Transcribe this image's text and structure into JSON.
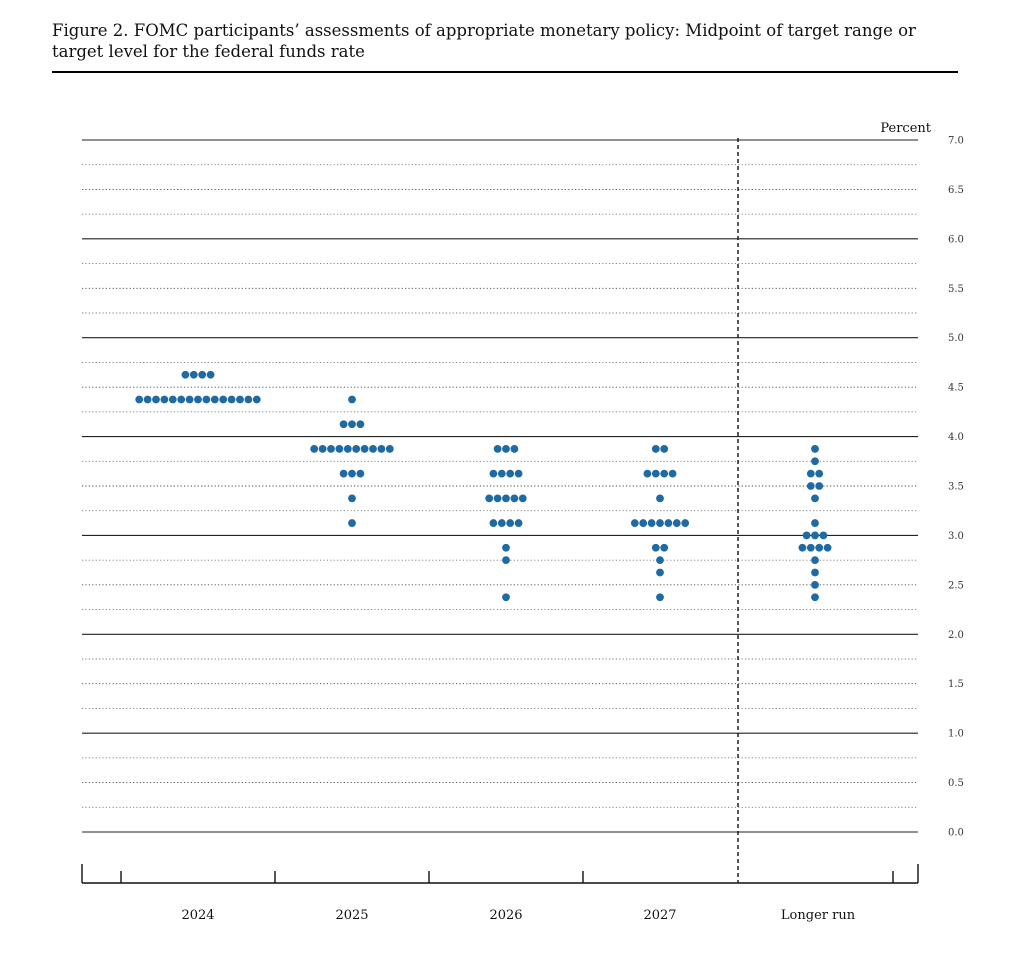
{
  "figure": {
    "title": "Figure 2.  FOMC participants’ assessments of appropriate monetary policy:  Midpoint of target range or target level for the federal funds rate"
  },
  "chart_data": {
    "type": "scatter",
    "subtype": "dot-plot",
    "title": "Figure 2.  FOMC participants’ assessments of appropriate monetary policy:  Midpoint of target range or target level for the federal funds rate",
    "ylabel": "Percent",
    "ylim": [
      0,
      7
    ],
    "yticks": [
      "0.0",
      "0.5",
      "1.0",
      "1.5",
      "2.0",
      "2.5",
      "3.0",
      "3.5",
      "4.0",
      "4.5",
      "5.0",
      "5.5",
      "6.0",
      "6.5",
      "7.0"
    ],
    "categories": [
      "2024",
      "2025",
      "2026",
      "2027",
      "Longer run"
    ],
    "grid": true,
    "dot_color": "#1f6aa3",
    "series": [
      {
        "category": "2024",
        "points": [
          {
            "y": 4.625,
            "count": 4
          },
          {
            "y": 4.375,
            "count": 15
          }
        ]
      },
      {
        "category": "2025",
        "points": [
          {
            "y": 4.375,
            "count": 1
          },
          {
            "y": 4.125,
            "count": 3
          },
          {
            "y": 3.875,
            "count": 10
          },
          {
            "y": 3.625,
            "count": 3
          },
          {
            "y": 3.375,
            "count": 1
          },
          {
            "y": 3.125,
            "count": 1
          }
        ]
      },
      {
        "category": "2026",
        "points": [
          {
            "y": 3.875,
            "count": 3
          },
          {
            "y": 3.625,
            "count": 4
          },
          {
            "y": 3.375,
            "count": 5
          },
          {
            "y": 3.125,
            "count": 4
          },
          {
            "y": 2.875,
            "count": 1
          },
          {
            "y": 2.75,
            "count": 1
          },
          {
            "y": 2.375,
            "count": 1
          }
        ]
      },
      {
        "category": "2027",
        "points": [
          {
            "y": 3.875,
            "count": 2
          },
          {
            "y": 3.625,
            "count": 4
          },
          {
            "y": 3.375,
            "count": 1
          },
          {
            "y": 3.125,
            "count": 7
          },
          {
            "y": 2.875,
            "count": 2
          },
          {
            "y": 2.75,
            "count": 1
          },
          {
            "y": 2.625,
            "count": 1
          },
          {
            "y": 2.375,
            "count": 1
          }
        ]
      },
      {
        "category": "Longer run",
        "points": [
          {
            "y": 3.875,
            "count": 1
          },
          {
            "y": 3.75,
            "count": 1
          },
          {
            "y": 3.625,
            "count": 2
          },
          {
            "y": 3.5,
            "count": 2
          },
          {
            "y": 3.375,
            "count": 1
          },
          {
            "y": 3.125,
            "count": 1
          },
          {
            "y": 3.0,
            "count": 3
          },
          {
            "y": 2.875,
            "count": 4
          },
          {
            "y": 2.75,
            "count": 1
          },
          {
            "y": 2.625,
            "count": 1
          },
          {
            "y": 2.5,
            "count": 1
          },
          {
            "y": 2.375,
            "count": 1
          }
        ]
      }
    ]
  }
}
